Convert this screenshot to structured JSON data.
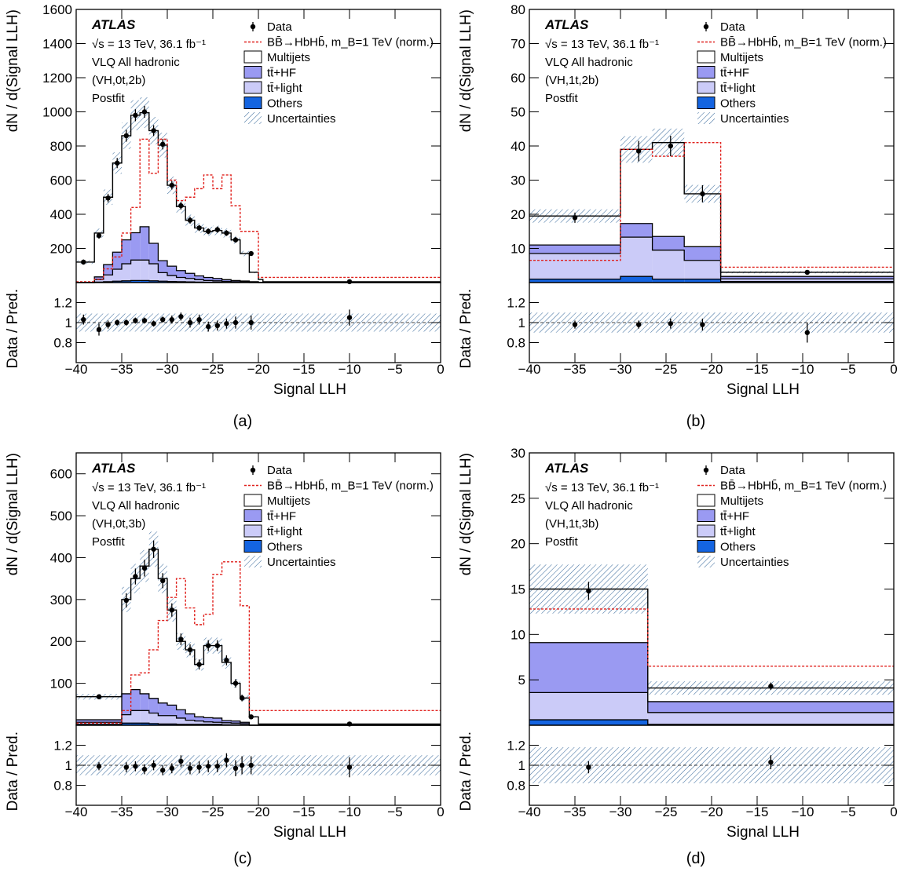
{
  "figure": {
    "label_a": "(a)",
    "label_b": "(b)",
    "label_c": "(c)",
    "label_d": "(d)"
  },
  "chart_data": [
    {
      "id": "a",
      "type": "histogram",
      "panel_label": "(a)",
      "atlas": "ATLAS",
      "info_lines": [
        "√s = 13 TeV, 36.1 fb⁻¹",
        "VLQ All hadronic",
        "(VH,0t,2b)",
        "Postfit"
      ],
      "legend": [
        "Data",
        "BB̄→HbHb̄, m_B=1 TeV (norm.)",
        "Multijets",
        "tt̄+HF",
        "tt̄+light",
        "Others",
        "Uncertainties"
      ],
      "xlabel": "Signal LLH",
      "ylabel": "dN / d(Signal LLH)",
      "ratio_ylabel": "Data / Pred.",
      "xlim": [
        -40,
        0
      ],
      "ylim": [
        0,
        1600
      ],
      "yticks": [
        200,
        400,
        600,
        800,
        1000,
        1200,
        1400,
        1600
      ],
      "ratio_ylim": [
        0.6,
        1.4
      ],
      "ratio_yticks": [
        0.8,
        1,
        1.2
      ],
      "xticks": [
        -40,
        -35,
        -30,
        -25,
        -20,
        -15,
        -10,
        -5,
        0
      ],
      "edges": [
        -40,
        -38,
        -37,
        -36,
        -35,
        -34,
        -33,
        -32,
        -31,
        -30,
        -29,
        -28,
        -27,
        -26,
        -25,
        -24,
        -23,
        -22,
        -21,
        -20,
        -19.5,
        0
      ],
      "total": [
        120,
        290,
        500,
        700,
        860,
        980,
        995,
        890,
        805,
        570,
        445,
        365,
        320,
        300,
        305,
        290,
        250,
        170,
        60,
        18,
        5
      ],
      "ttlight": [
        0,
        15,
        40,
        70,
        100,
        120,
        120,
        100,
        50,
        35,
        25,
        20,
        14,
        10,
        8,
        6,
        4,
        3,
        2,
        0,
        0
      ],
      "tthf": [
        0,
        15,
        60,
        100,
        140,
        160,
        195,
        120,
        70,
        55,
        40,
        30,
        22,
        18,
        14,
        10,
        7,
        5,
        3,
        0,
        0
      ],
      "others": [
        0,
        3,
        5,
        8,
        10,
        12,
        12,
        10,
        8,
        6,
        5,
        4,
        3,
        2,
        2,
        1,
        1,
        1,
        0,
        0,
        0
      ],
      "signal": [
        5,
        20,
        80,
        150,
        290,
        440,
        840,
        640,
        840,
        600,
        480,
        500,
        550,
        630,
        550,
        630,
        450,
        300,
        300,
        30,
        30
      ],
      "data_x": [
        -39.2,
        -37.5,
        -36.5,
        -35.5,
        -34.5,
        -33.5,
        -32.5,
        -31.5,
        -30.5,
        -29.5,
        -28.5,
        -27.5,
        -26.5,
        -25.5,
        -24.5,
        -23.5,
        -22.5,
        -20.8,
        -10
      ],
      "data_y": [
        120,
        275,
        495,
        700,
        860,
        980,
        1000,
        890,
        810,
        570,
        450,
        365,
        320,
        300,
        310,
        290,
        250,
        170,
        5
      ],
      "data_err": [
        15,
        18,
        25,
        30,
        35,
        35,
        35,
        32,
        30,
        25,
        22,
        20,
        18,
        17,
        18,
        17,
        16,
        13,
        2
      ],
      "ratio_y": [
        1.03,
        0.93,
        0.98,
        1.0,
        1.0,
        1.02,
        1.02,
        0.99,
        1.03,
        1.03,
        1.06,
        1.0,
        1.03,
        0.96,
        0.97,
        0.99,
        1.0,
        1.0,
        1.05
      ],
      "ratio_err": [
        0.05,
        0.06,
        0.04,
        0.03,
        0.03,
        0.03,
        0.03,
        0.03,
        0.03,
        0.04,
        0.04,
        0.05,
        0.05,
        0.05,
        0.05,
        0.05,
        0.06,
        0.07,
        0.08
      ],
      "unc_band": 0.09
    },
    {
      "id": "b",
      "type": "histogram",
      "panel_label": "(b)",
      "atlas": "ATLAS",
      "info_lines": [
        "√s = 13 TeV, 36.1 fb⁻¹",
        "VLQ All hadronic",
        "(VH,1t,2b)",
        "Postfit"
      ],
      "legend": [
        "Data",
        "BB̄→HbHb̄, m_B=1 TeV (norm.)",
        "Multijets",
        "tt̄+HF",
        "tt̄+light",
        "Others",
        "Uncertainties"
      ],
      "xlabel": "Signal LLH",
      "ylabel": "dN / d(Signal LLH)",
      "ratio_ylabel": "Data / Pred.",
      "xlim": [
        -40,
        0
      ],
      "ylim": [
        0,
        80
      ],
      "yticks": [
        10,
        20,
        30,
        40,
        50,
        60,
        70,
        80
      ],
      "ratio_ylim": [
        0.6,
        1.4
      ],
      "ratio_yticks": [
        0.8,
        1,
        1.2
      ],
      "xticks": [
        -40,
        -35,
        -30,
        -25,
        -20,
        -15,
        -10,
        -5,
        0
      ],
      "edges": [
        -40,
        -30,
        -26.5,
        -23,
        -19,
        0
      ],
      "total": [
        19.5,
        39,
        41,
        26,
        3
      ],
      "ttlight": [
        7.5,
        11.5,
        8.5,
        5.5,
        0.8
      ],
      "tthf": [
        2.5,
        4,
        4,
        4,
        0.7
      ],
      "others": [
        1,
        1.8,
        1,
        1,
        0.3
      ],
      "signal": [
        6.5,
        39,
        37,
        41,
        4.5
      ],
      "data_x": [
        -35,
        -28,
        -24.5,
        -21,
        -9.5
      ],
      "data_y": [
        19,
        38.5,
        40,
        26,
        3
      ],
      "data_err": [
        1.5,
        3,
        3,
        2.5,
        0.5
      ],
      "ratio_y": [
        0.98,
        0.98,
        0.99,
        0.98,
        0.9
      ],
      "ratio_err": [
        0.04,
        0.04,
        0.05,
        0.06,
        0.1
      ],
      "unc_band": 0.1
    },
    {
      "id": "c",
      "type": "histogram",
      "panel_label": "(c)",
      "atlas": "ATLAS",
      "info_lines": [
        "√s = 13 TeV, 36.1 fb⁻¹",
        "VLQ All hadronic",
        "(VH,0t,3b)",
        "Postfit"
      ],
      "legend": [
        "Data",
        "BB̄→HbHb̄, m_B=1 TeV (norm.)",
        "Multijets",
        "tt̄+HF",
        "tt̄+light",
        "Others",
        "Uncertainties"
      ],
      "xlabel": "Signal LLH",
      "ylabel": "dN / d(Signal LLH)",
      "ratio_ylabel": "Data / Pred.",
      "xlim": [
        -40,
        0
      ],
      "ylim": [
        0,
        650
      ],
      "yticks": [
        100,
        200,
        300,
        400,
        500,
        600
      ],
      "ratio_ylim": [
        0.6,
        1.4
      ],
      "ratio_yticks": [
        0.8,
        1,
        1.2
      ],
      "xticks": [
        -40,
        -35,
        -30,
        -25,
        -20,
        -15,
        -10,
        -5,
        0
      ],
      "edges": [
        -40,
        -35,
        -34,
        -33,
        -32,
        -31,
        -30,
        -29,
        -28,
        -27,
        -26,
        -25,
        -24,
        -23,
        -22,
        -21,
        -20,
        0
      ],
      "total": [
        68,
        300,
        350,
        380,
        420,
        350,
        275,
        200,
        180,
        145,
        190,
        190,
        150,
        100,
        65,
        20,
        3
      ],
      "ttlight": [
        5,
        20,
        30,
        30,
        25,
        20,
        20,
        15,
        10,
        8,
        6,
        5,
        5,
        4,
        3,
        0,
        0
      ],
      "tthf": [
        6,
        50,
        50,
        40,
        35,
        30,
        25,
        20,
        15,
        10,
        10,
        10,
        5,
        5,
        3,
        0,
        0
      ],
      "others": [
        2,
        5,
        5,
        5,
        4,
        3,
        3,
        2,
        2,
        2,
        2,
        2,
        1,
        1,
        1,
        0,
        0
      ],
      "signal": [
        5,
        35,
        120,
        125,
        180,
        250,
        305,
        350,
        280,
        240,
        265,
        360,
        390,
        390,
        285,
        35,
        35
      ],
      "data_x": [
        -37.5,
        -34.5,
        -33.5,
        -32.5,
        -31.5,
        -30.5,
        -29.5,
        -28.5,
        -27.5,
        -26.5,
        -25.5,
        -24.5,
        -23.5,
        -22.5,
        -21.8,
        -20.8,
        -10
      ],
      "data_y": [
        68,
        298,
        355,
        375,
        420,
        345,
        275,
        205,
        180,
        145,
        190,
        190,
        155,
        100,
        65,
        20,
        3
      ],
      "data_err": [
        6,
        17,
        19,
        20,
        21,
        18,
        16,
        14,
        13,
        12,
        13,
        13,
        12,
        10,
        8,
        4,
        1
      ],
      "ratio_y": [
        0.99,
        0.98,
        0.99,
        0.96,
        1.0,
        0.95,
        0.97,
        1.04,
        0.97,
        0.98,
        0.99,
        0.99,
        1.05,
        0.97,
        1.0,
        1.0,
        0.98
      ],
      "ratio_err": [
        0.04,
        0.05,
        0.05,
        0.05,
        0.05,
        0.05,
        0.05,
        0.06,
        0.06,
        0.06,
        0.06,
        0.06,
        0.07,
        0.08,
        0.09,
        0.09,
        0.1
      ],
      "unc_band": 0.1
    },
    {
      "id": "d",
      "type": "histogram",
      "panel_label": "(d)",
      "atlas": "ATLAS",
      "info_lines": [
        "√s = 13 TeV, 36.1 fb⁻¹",
        "VLQ All hadronic",
        "(VH,1t,3b)",
        "Postfit"
      ],
      "legend": [
        "Data",
        "BB̄→HbHb̄, m_B=1 TeV (norm.)",
        "Multijets",
        "tt̄+HF",
        "tt̄+light",
        "Others",
        "Uncertainties"
      ],
      "xlabel": "Signal LLH",
      "ylabel": "dN / d(Signal LLH)",
      "ratio_ylabel": "Data / Pred.",
      "xlim": [
        -40,
        0
      ],
      "ylim": [
        0,
        30
      ],
      "yticks": [
        5,
        10,
        15,
        20,
        25,
        30
      ],
      "ratio_ylim": [
        0.6,
        1.4
      ],
      "ratio_yticks": [
        0.8,
        1,
        1.2
      ],
      "xticks": [
        -40,
        -35,
        -30,
        -25,
        -20,
        -15,
        -10,
        -5,
        0
      ],
      "edges": [
        -40,
        -27,
        0
      ],
      "total": [
        15,
        4.1
      ],
      "ttlight": [
        3,
        1.3
      ],
      "tthf": [
        5.5,
        1.2
      ],
      "others": [
        0.6,
        0.1
      ],
      "signal": [
        12.8,
        6.5
      ],
      "data_x": [
        -33.5,
        -13.5
      ],
      "data_y": [
        14.8,
        4.3
      ],
      "data_err": [
        1.0,
        0.4
      ],
      "ratio_y": [
        0.98,
        1.03
      ],
      "ratio_err": [
        0.06,
        0.07
      ],
      "unc_band": 0.18
    }
  ]
}
